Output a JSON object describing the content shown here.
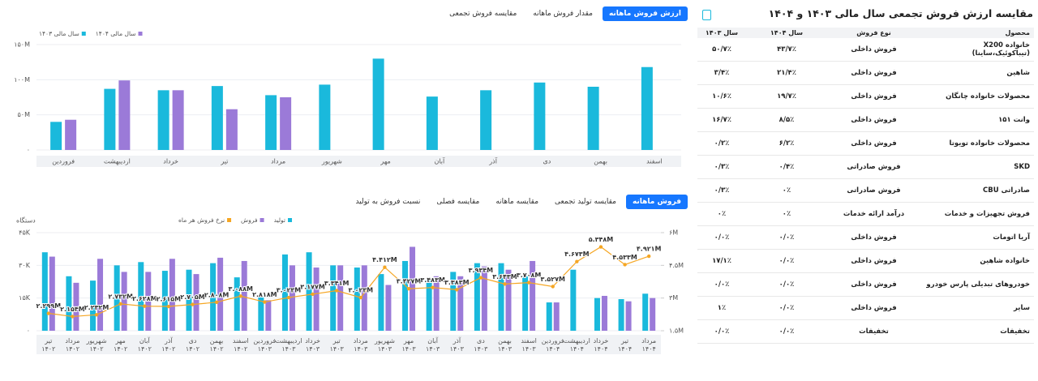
{
  "top_tabs": [
    "ارزش فروش ماهانه",
    "مقدار فروش ماهانه",
    "مقایسه فروش تجمعی"
  ],
  "bottom_tabs": [
    "فروش ماهانه",
    "مقایسه تولید تجمعی",
    "مقایسه ماهانه",
    "مقایسه فصلی",
    "نسبت فروش به تولید"
  ],
  "chart_data": [
    {
      "type": "bar",
      "categories": [
        "فروردین",
        "اردیبهشت",
        "خرداد",
        "تیر",
        "مرداد",
        "شهریور",
        "مهر",
        "آبان",
        "آذر",
        "دی",
        "بهمن",
        "اسفند"
      ],
      "series": [
        {
          "name": "سال مالی ۱۴۰۳",
          "color": "#1ab9dc",
          "values": [
            40,
            87,
            85,
            91,
            78,
            93,
            130,
            76,
            85,
            96,
            90,
            118
          ]
        },
        {
          "name": "سال مالی ۱۴۰۴",
          "color": "#9b7ad8",
          "values": [
            43,
            99,
            85,
            58,
            75,
            null,
            null,
            null,
            null,
            null,
            null,
            null
          ]
        }
      ],
      "ylim": [
        0,
        150
      ],
      "yticks": [
        {
          "value": 0,
          "label": "۰"
        },
        {
          "value": 50,
          "label": "۵۰M"
        },
        {
          "value": 100,
          "label": "۱۰۰M"
        },
        {
          "value": 150,
          "label": "۱۵۰M"
        }
      ],
      "grid": true
    },
    {
      "type": "bar",
      "ylabel": "دستگاه",
      "categories": [
        [
          "تیر",
          "۱۴۰۲"
        ],
        [
          "مرداد",
          "۱۴۰۲"
        ],
        [
          "شهریور",
          "۱۴۰۲"
        ],
        [
          "مهر",
          "۱۴۰۲"
        ],
        [
          "آبان",
          "۱۴۰۲"
        ],
        [
          "آذر",
          "۱۴۰۲"
        ],
        [
          "دی",
          "۱۴۰۲"
        ],
        [
          "بهمن",
          "۱۴۰۲"
        ],
        [
          "اسفند",
          "۱۴۰۲"
        ],
        [
          "فروردین",
          "۱۴۰۳"
        ],
        [
          "اردیبهشت",
          "۱۴۰۳"
        ],
        [
          "خرداد",
          "۱۴۰۳"
        ],
        [
          "تیر",
          "۱۴۰۳"
        ],
        [
          "مرداد",
          "۱۴۰۳"
        ],
        [
          "شهریور",
          "۱۴۰۳"
        ],
        [
          "مهر",
          "۱۴۰۳"
        ],
        [
          "آبان",
          "۱۴۰۳"
        ],
        [
          "آذر",
          "۱۴۰۳"
        ],
        [
          "دی",
          "۱۴۰۳"
        ],
        [
          "بهمن",
          "۱۴۰۳"
        ],
        [
          "اسفند",
          "۱۴۰۳"
        ],
        [
          "فروردین",
          "۱۴۰۴"
        ],
        [
          "اردیبهشت",
          "۱۴۰۴"
        ],
        [
          "خرداد",
          "۱۴۰۴"
        ],
        [
          "تیر",
          "۱۴۰۴"
        ],
        [
          "مرداد",
          "۱۴۰۴"
        ]
      ],
      "series": [
        {
          "name": "تولید",
          "color": "#1ab9dc",
          "values": [
            36,
            25,
            23,
            30,
            31.5,
            27.5,
            28,
            31,
            24.5,
            16,
            35,
            36,
            30,
            29,
            26,
            32,
            23.5,
            27,
            31,
            31,
            25,
            13,
            28,
            15,
            14.5,
            17
          ]
        },
        {
          "name": "فروش",
          "color": "#9b7ad8",
          "values": [
            34,
            22,
            33,
            27,
            27,
            33,
            26,
            33.5,
            32,
            14,
            30,
            29,
            30,
            30,
            21,
            38.5,
            25,
            25,
            29.5,
            28,
            32,
            13,
            null,
            16,
            13.5,
            15
          ]
        },
        {
          "name": "نرخ فروش هر ماه",
          "color": "#f5a623",
          "type": "line",
          "axis": "y2",
          "values": [
            2.299,
            2.154,
            2.232,
            2.732,
            2.628,
            2.615,
            2.705,
            2.808,
            3.088,
            2.818,
            3.023,
            3.177,
            3.341,
            3.023,
            4.412,
            3.427,
            3.483,
            3.383,
            3.934,
            3.643,
            3.708,
            3.527,
            4.673,
            5.348,
            4.533,
            4.921
          ],
          "value_labels": [
            "۲.۲۹۹M",
            "۲.۱۵۴M",
            "۲.۲۳۲M",
            "۲.۷۳۲M",
            "۲.۶۲۸M",
            "۲.۶۱۵M",
            "۲.۷۰۵M",
            "۲.۸۰۸M",
            "۳.۰۸۸M",
            "۲.۸۱۸M",
            "۳.۰۲۳M",
            "۳.۱۷۷M",
            "۳.۳۴۱M",
            "۳.۰۲۳M",
            "۴.۴۱۲M",
            "۳.۴۲۷M",
            "۳.۴۸۳M",
            "۳.۳۸۳M",
            "۳.۹۳۴M",
            "۳.۶۴۳M",
            "۳.۷۰۸M",
            "۳.۵۲۷M",
            "۴.۶۷۳M",
            "۵.۳۴۸M",
            "۴.۵۳۳M",
            "۴.۹۲۱M"
          ]
        }
      ],
      "ylim": [
        0,
        45
      ],
      "yticks": [
        {
          "value": 0,
          "label": "۰"
        },
        {
          "value": 15,
          "label": "۱۵K"
        },
        {
          "value": 30,
          "label": "۳۰K"
        },
        {
          "value": 45,
          "label": "۴۵K"
        }
      ],
      "y2lim": [
        1.5,
        6
      ],
      "y2ticks": [
        {
          "value": 1.5,
          "label": "۱.۵M"
        },
        {
          "value": 3,
          "label": "۳M"
        },
        {
          "value": 4.5,
          "label": "۴.۵M"
        },
        {
          "value": 6,
          "label": "۶M"
        }
      ],
      "grid": true
    }
  ],
  "table": {
    "title": "مقایسه ارزش فروش تجمعی سال مالی ۱۴۰۳ و ۱۴۰۴",
    "columns": [
      "محصول",
      "نوع فروش",
      "سال ۱۴۰۴",
      "سال ۱۴۰۳"
    ],
    "rows": [
      [
        "خانواده X200 (تیباکوئیک،ساینا)",
        "فروش داخلی",
        "۴۳/۷٪",
        "۵۰/۷٪"
      ],
      [
        "شاهین",
        "فروش داخلی",
        "۲۱/۴٪",
        "۳/۴٪"
      ],
      [
        "محصولات خانواده چانگان",
        "فروش داخلی",
        "۱۹/۷٪",
        "۱۰/۶٪"
      ],
      [
        "وانت ۱۵۱",
        "فروش داخلی",
        "۸/۵٪",
        "۱۶/۷٪"
      ],
      [
        "محصولات خانواده تویوتا",
        "فروش داخلی",
        "۶/۲٪",
        "۰/۲٪"
      ],
      [
        "SKD",
        "فروش صادراتی",
        "۰/۴٪",
        "۰/۳٪"
      ],
      [
        "صادراتی CBU",
        "فروش صادراتی",
        "۰٪",
        "۰/۳٪"
      ],
      [
        "فروش تجهیزات و خدمات",
        "درآمد ارائه خدمات",
        "۰٪",
        "۰٪"
      ],
      [
        "آریا اتومات",
        "فروش داخلی",
        "۰/۰٪",
        "۰/۰٪"
      ],
      [
        "خانواده شاهین",
        "فروش داخلی",
        "۰/۰٪",
        "۱۷/۱٪"
      ],
      [
        "خودروهای تبدیلی پارس خودرو",
        "فروش داخلی",
        "۰/۰٪",
        "۰/۰٪"
      ],
      [
        "سایر",
        "فروش داخلی",
        "۰/۰٪",
        "۱٪"
      ],
      [
        "تخفیفات",
        "تخفیفات",
        "۰/۰٪",
        "۰/۰٪"
      ]
    ]
  }
}
